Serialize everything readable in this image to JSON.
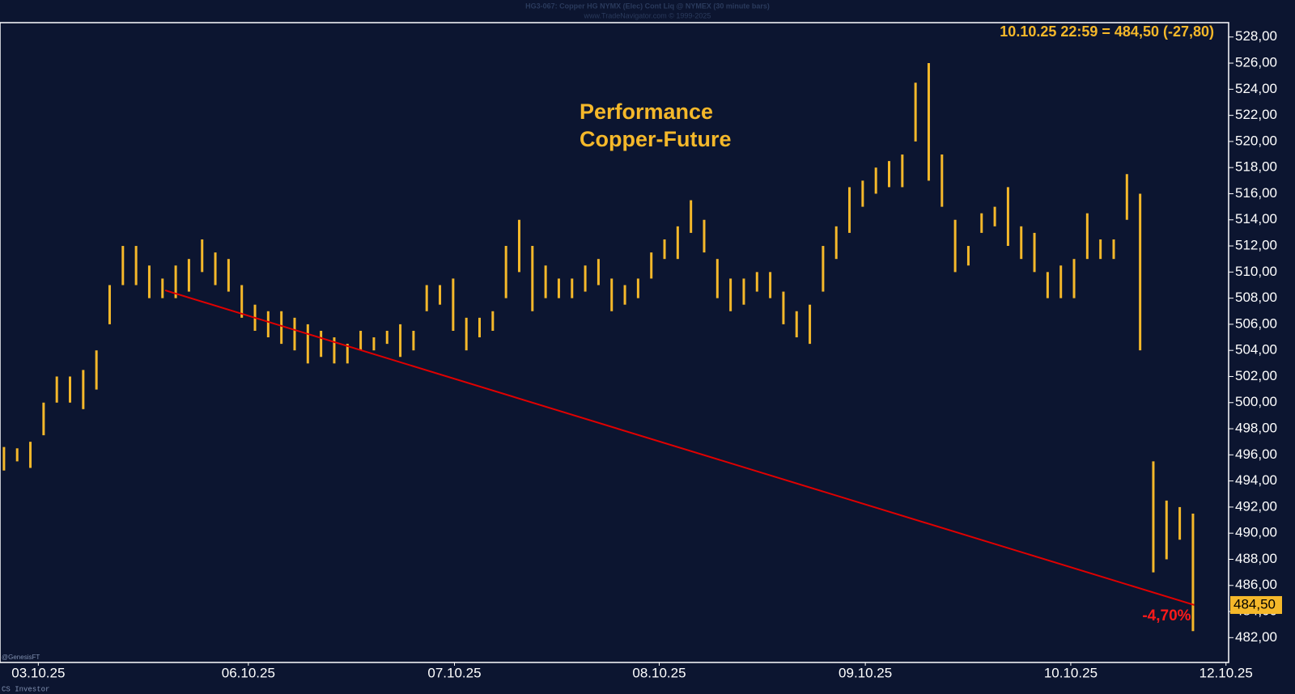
{
  "chart_data": {
    "type": "ohlc",
    "header": "HG3-067:  Copper HG NYMX (Elec) Cont Liq @ NYMEX  (30 minute bars)",
    "source": "www.TradeNavigator.com © 1999-2025",
    "last_quote": "10.10.25 22:59 = 484,50 (-27,80)",
    "title": "Performance",
    "subtitle": "Copper-Future",
    "performance_label": "-4,70%",
    "vendor": "@GenesisFT",
    "footer": "CS Investor",
    "color": "#f5b82a",
    "xlim": [
      -0.3,
      92.7
    ],
    "ylim": [
      480.1,
      529.1
    ],
    "xticks": [
      {
        "value": 2.6,
        "label": "03.10.25"
      },
      {
        "value": 18.5,
        "label": "06.10.25"
      },
      {
        "value": 34.1,
        "label": "07.10.25"
      },
      {
        "value": 49.6,
        "label": "08.10.25"
      },
      {
        "value": 65.2,
        "label": "09.10.25"
      },
      {
        "value": 80.75,
        "label": "10.10.25"
      },
      {
        "value": 92.5,
        "label": "12.10.25"
      }
    ],
    "yticks": [
      {
        "value": 482,
        "label": "482,00"
      },
      {
        "value": 484,
        "label": "484,00"
      },
      {
        "value": 486,
        "label": "486,00"
      },
      {
        "value": 488,
        "label": "488,00"
      },
      {
        "value": 490,
        "label": "490,00"
      },
      {
        "value": 492,
        "label": "492,00"
      },
      {
        "value": 494,
        "label": "494,00"
      },
      {
        "value": 496,
        "label": "496,00"
      },
      {
        "value": 498,
        "label": "498,00"
      },
      {
        "value": 500,
        "label": "500,00"
      },
      {
        "value": 502,
        "label": "502,00"
      },
      {
        "value": 504,
        "label": "504,00"
      },
      {
        "value": 506,
        "label": "506,00"
      },
      {
        "value": 508,
        "label": "508,00"
      },
      {
        "value": 510,
        "label": "510,00"
      },
      {
        "value": 512,
        "label": "512,00"
      },
      {
        "value": 514,
        "label": "514,00"
      },
      {
        "value": 516,
        "label": "516,00"
      },
      {
        "value": 518,
        "label": "518,00"
      },
      {
        "value": 520,
        "label": "520,00"
      },
      {
        "value": 522,
        "label": "522,00"
      },
      {
        "value": 524,
        "label": "524,00"
      },
      {
        "value": 526,
        "label": "526,00"
      },
      {
        "value": 528,
        "label": "528,00"
      }
    ],
    "high": [
      496.6,
      496.5,
      497,
      500,
      502,
      502,
      502.5,
      504,
      509,
      512,
      512,
      510.5,
      509.5,
      510.5,
      511,
      512.5,
      511.5,
      511,
      509,
      507.5,
      507,
      507,
      506.5,
      506,
      505.5,
      505,
      504.5,
      505.5,
      505,
      505.5,
      506,
      505.5,
      509,
      509,
      509.5,
      506.5,
      506.5,
      507,
      512,
      514,
      512,
      510.5,
      509.5,
      509.5,
      510.5,
      511,
      509.5,
      509,
      509.5,
      511.5,
      512.5,
      513.5,
      515.5,
      514,
      511,
      509.5,
      509.5,
      510,
      510,
      508.5,
      507,
      507.5,
      512,
      513.5,
      516.5,
      517,
      518,
      518.5,
      519,
      524.5,
      526,
      519,
      514,
      512,
      514.5,
      515,
      516.5,
      513.5,
      513,
      510,
      510.5,
      511,
      514.5,
      512.5,
      512.5,
      517.5,
      516,
      495.5,
      492.5,
      492,
      491.5
    ],
    "low": [
      494.8,
      495.5,
      495,
      497.5,
      500,
      500,
      499.5,
      501,
      506,
      509,
      509,
      508,
      508,
      508,
      508.5,
      510,
      509,
      508.5,
      506.5,
      505.5,
      505,
      504.5,
      504,
      503,
      503.5,
      503,
      503,
      504,
      504,
      504.5,
      503.5,
      504,
      507,
      507.5,
      505.5,
      504,
      505,
      505.5,
      508,
      510,
      507,
      508,
      508,
      508,
      508.5,
      509,
      507,
      507.5,
      508,
      509.5,
      511,
      511,
      513,
      511.5,
      508,
      507,
      507.5,
      508.5,
      508,
      506,
      505,
      504.5,
      508.5,
      511,
      513,
      515,
      516,
      516.5,
      516.5,
      520,
      517,
      515,
      510,
      510.5,
      513,
      513.5,
      512,
      511,
      510,
      508,
      508,
      508,
      511,
      511,
      511,
      514,
      504,
      487,
      488,
      489.5,
      482.5
    ],
    "trendline": {
      "x": [
        12.2,
        90.1
      ],
      "values": [
        508.6,
        484.5
      ],
      "color": "#e00000"
    },
    "last_price": {
      "value": 484.5,
      "label": "484,50"
    }
  }
}
